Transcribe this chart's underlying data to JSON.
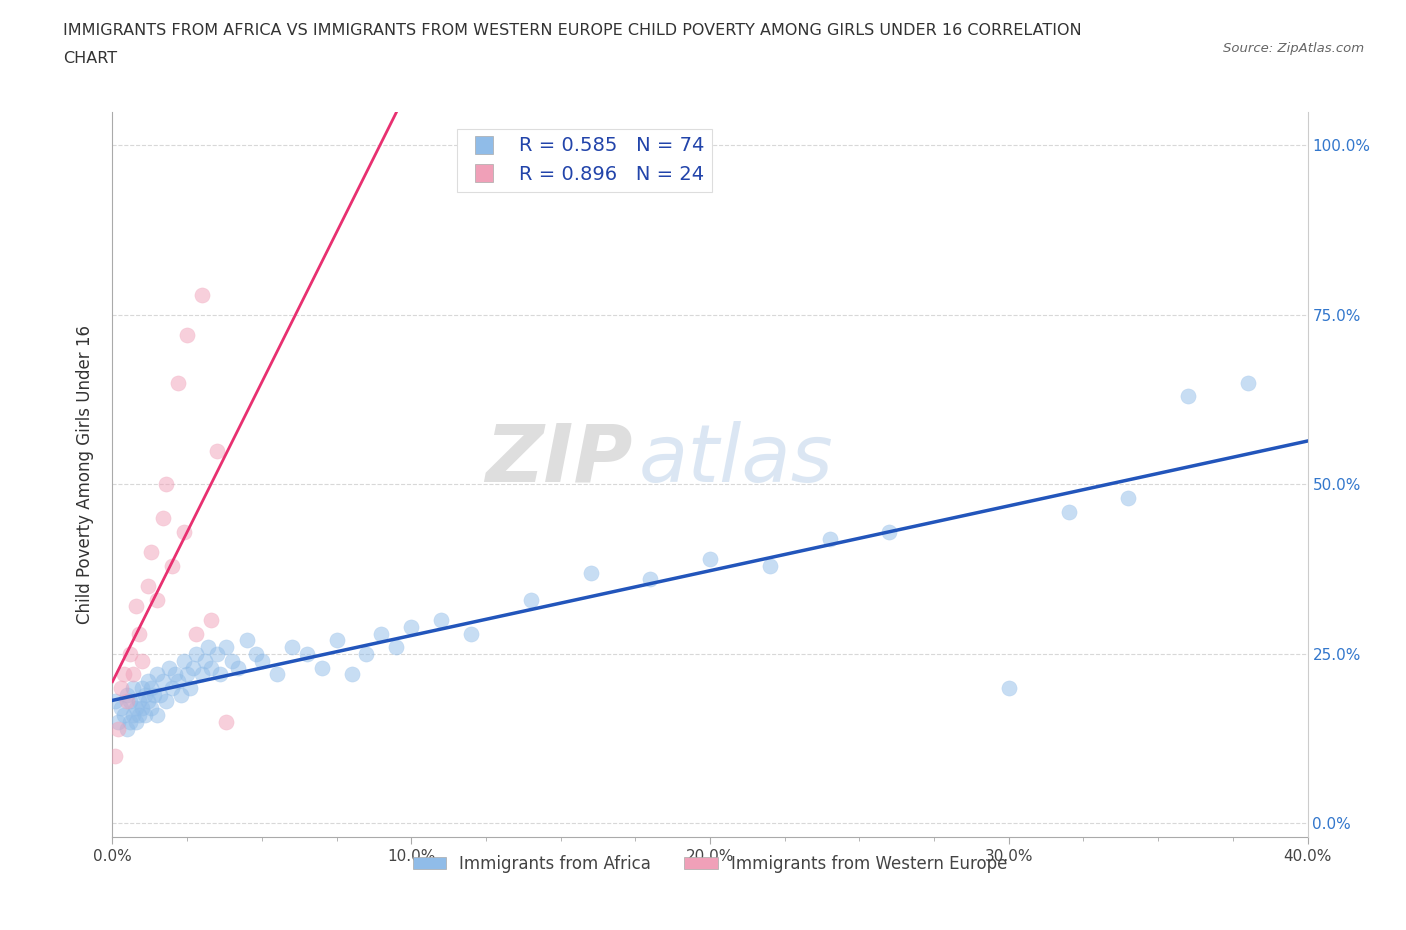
{
  "title_line1": "IMMIGRANTS FROM AFRICA VS IMMIGRANTS FROM WESTERN EUROPE CHILD POVERTY AMONG GIRLS UNDER 16 CORRELATION",
  "title_line2": "CHART",
  "source_text": "Source: ZipAtlas.com",
  "ylabel": "Child Poverty Among Girls Under 16",
  "x_tick_labels": [
    "0.0%",
    "",
    "",
    "",
    "",
    "",
    "",
    "",
    "10.0%",
    "",
    "",
    "",
    "",
    "",
    "",
    "",
    "20.0%",
    "",
    "",
    "",
    "",
    "",
    "",
    "",
    "30.0%",
    "",
    "",
    "",
    "",
    "",
    "",
    "",
    "40.0%"
  ],
  "y_tick_labels_right": [
    "0.0%",
    "25.0%",
    "50.0%",
    "75.0%",
    "100.0%"
  ],
  "xlim": [
    0.0,
    0.4
  ],
  "ylim": [
    -0.02,
    1.05
  ],
  "legend_bottom": [
    "Immigrants from Africa",
    "Immigrants from Western Europe"
  ],
  "blue_color": "#90bce8",
  "pink_color": "#f0a0b8",
  "blue_line_color": "#2255bb",
  "pink_line_color": "#e83070",
  "watermark_zip": "ZIP",
  "watermark_atlas": "atlas",
  "africa_R": 0.585,
  "africa_N": 74,
  "europe_R": 0.896,
  "europe_N": 24,
  "grid_color": "#d8d8d8",
  "bg_color": "#ffffff",
  "africa_x": [
    0.001,
    0.002,
    0.003,
    0.004,
    0.005,
    0.005,
    0.006,
    0.006,
    0.007,
    0.007,
    0.008,
    0.008,
    0.009,
    0.009,
    0.01,
    0.01,
    0.011,
    0.011,
    0.012,
    0.012,
    0.013,
    0.013,
    0.014,
    0.015,
    0.015,
    0.016,
    0.017,
    0.018,
    0.019,
    0.02,
    0.021,
    0.022,
    0.023,
    0.024,
    0.025,
    0.026,
    0.027,
    0.028,
    0.03,
    0.031,
    0.032,
    0.033,
    0.035,
    0.036,
    0.038,
    0.04,
    0.042,
    0.045,
    0.048,
    0.05,
    0.055,
    0.06,
    0.065,
    0.07,
    0.075,
    0.08,
    0.085,
    0.09,
    0.095,
    0.1,
    0.11,
    0.12,
    0.14,
    0.16,
    0.18,
    0.2,
    0.22,
    0.24,
    0.26,
    0.3,
    0.32,
    0.34,
    0.36,
    0.38
  ],
  "africa_y": [
    0.18,
    0.15,
    0.17,
    0.16,
    0.14,
    0.19,
    0.15,
    0.18,
    0.16,
    0.2,
    0.15,
    0.17,
    0.18,
    0.16,
    0.17,
    0.2,
    0.16,
    0.19,
    0.18,
    0.21,
    0.17,
    0.2,
    0.19,
    0.16,
    0.22,
    0.19,
    0.21,
    0.18,
    0.23,
    0.2,
    0.22,
    0.21,
    0.19,
    0.24,
    0.22,
    0.2,
    0.23,
    0.25,
    0.22,
    0.24,
    0.26,
    0.23,
    0.25,
    0.22,
    0.26,
    0.24,
    0.23,
    0.27,
    0.25,
    0.24,
    0.22,
    0.26,
    0.25,
    0.23,
    0.27,
    0.22,
    0.25,
    0.28,
    0.26,
    0.29,
    0.3,
    0.28,
    0.33,
    0.37,
    0.36,
    0.39,
    0.38,
    0.42,
    0.43,
    0.2,
    0.46,
    0.48,
    0.63,
    0.65
  ],
  "europe_x": [
    0.001,
    0.002,
    0.003,
    0.004,
    0.005,
    0.006,
    0.007,
    0.008,
    0.009,
    0.01,
    0.012,
    0.013,
    0.015,
    0.017,
    0.018,
    0.02,
    0.022,
    0.024,
    0.025,
    0.028,
    0.03,
    0.033,
    0.035,
    0.038
  ],
  "europe_y": [
    0.1,
    0.14,
    0.2,
    0.22,
    0.18,
    0.25,
    0.22,
    0.32,
    0.28,
    0.24,
    0.35,
    0.4,
    0.33,
    0.45,
    0.5,
    0.38,
    0.65,
    0.43,
    0.72,
    0.28,
    0.78,
    0.3,
    0.55,
    0.15
  ]
}
